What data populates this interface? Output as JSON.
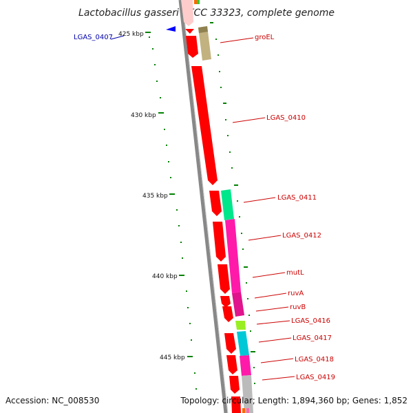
{
  "title": "Lactobacillus gasseri ATCC 33323, complete genome",
  "accession": "Accession: NC_008530",
  "topology": "Topology: circular; Length: 1,894,360 bp; Genes: 1,852",
  "ruler": [
    {
      "label": "425 kbp",
      "value": 425
    },
    {
      "label": "430 kbp",
      "value": 430
    },
    {
      "label": "435 kbp",
      "value": 435
    },
    {
      "label": "440 kbp",
      "value": 440
    },
    {
      "label": "445 kbp",
      "value": 445
    }
  ],
  "genes": [
    {
      "name": "LGAS_0407",
      "strand": "minus",
      "color": "#0000cc"
    },
    {
      "name": "groEL",
      "strand": "plus",
      "color": "#cc0000",
      "cog_color": "#c2b280"
    },
    {
      "name": "LGAS_0410",
      "strand": "plus",
      "color": "#cc0000",
      "cog_color": "#ff0000"
    },
    {
      "name": "LGAS_0411",
      "strand": "plus",
      "color": "#cc0000",
      "cog_color": "#00e68a"
    },
    {
      "name": "LGAS_0412",
      "strand": "plus",
      "color": "#cc0000",
      "cog_color": "#ff1aaa"
    },
    {
      "name": "mutL",
      "strand": "plus",
      "color": "#cc0000",
      "cog_color": "#ff1aaa"
    },
    {
      "name": "ruvA",
      "strand": "plus",
      "color": "#cc0000",
      "cog_color": "#e0148c"
    },
    {
      "name": "ruvB",
      "strand": "plus",
      "color": "#cc0000",
      "cog_color": "#e0148c"
    },
    {
      "name": "LGAS_0416",
      "strand": "plus",
      "color": "#cc0000",
      "cog_color": "#99ee22"
    },
    {
      "name": "LGAS_0417",
      "strand": "plus",
      "color": "#cc0000",
      "cog_color": "#00c8d6"
    },
    {
      "name": "LGAS_0418",
      "strand": "plus",
      "color": "#cc0000",
      "cog_color": "#ff1aaa"
    },
    {
      "name": "LGAS_0419",
      "strand": "plus",
      "color": "#cc0000",
      "cog_color": "#bbbbbb"
    }
  ],
  "colors": {
    "backbone": "#888888",
    "gene_fill": "#ff0000",
    "minus_gene": "#0000ff",
    "tick": "#008000",
    "label_red": "#cc0000",
    "label_blue": "#0000aa"
  }
}
